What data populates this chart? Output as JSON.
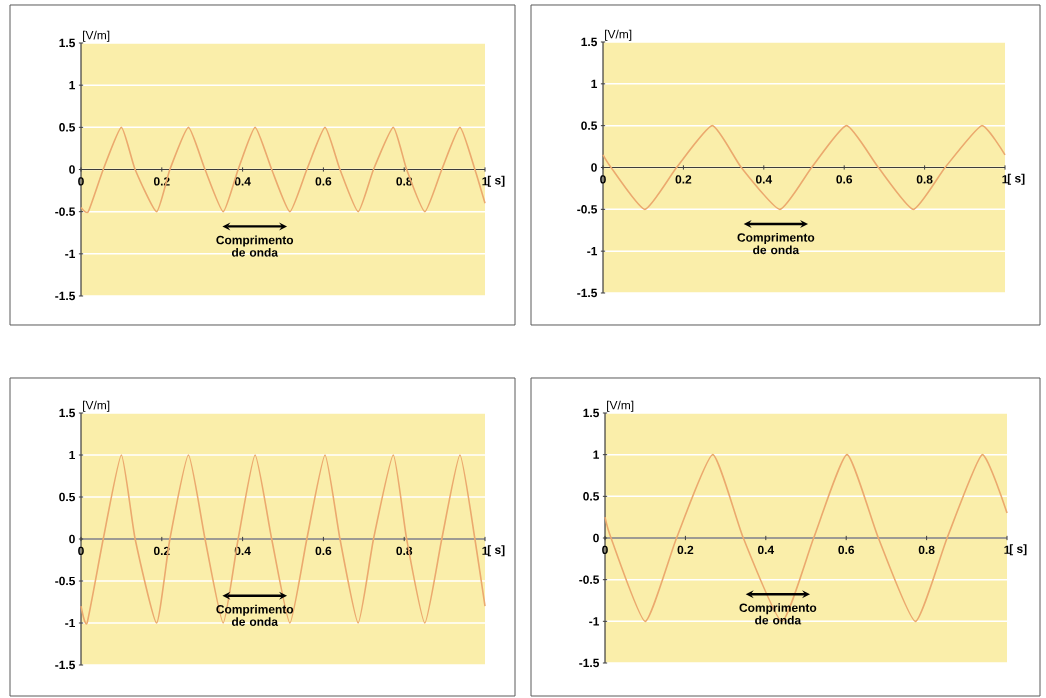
{
  "chart_data": [
    {
      "type": "line",
      "x": [
        0,
        0.018,
        0.055,
        0.1,
        0.134,
        0.187,
        0.22,
        0.266,
        0.307,
        0.352,
        0.389,
        0.431,
        0.472,
        0.517,
        0.559,
        0.604,
        0.641,
        0.686,
        0.724,
        0.773,
        0.806,
        0.851,
        0.893,
        0.938,
        0.975,
        1
      ],
      "values": [
        -0.45,
        -0.5,
        0,
        0.5,
        0,
        -0.5,
        0,
        0.5,
        0,
        -0.5,
        0,
        0.5,
        0,
        -0.5,
        0,
        0.5,
        0,
        -0.5,
        0,
        0.5,
        0,
        -0.5,
        0,
        0.5,
        0,
        -0.4
      ],
      "color": "#eba96e",
      "xlim": [
        0,
        1
      ],
      "ylim": [
        -1.5,
        1.5
      ],
      "xticks": [
        0,
        0.2,
        0.4,
        0.6,
        0.8,
        1
      ],
      "yticks": [
        -1.5,
        -1,
        -0.5,
        0,
        0.5,
        1,
        1.5
      ],
      "xlabel": "[ s]",
      "ylabel": "[V/m]",
      "annotations": [
        "Comprimento de onda"
      ],
      "grid": "y"
    },
    {
      "type": "line",
      "x": [
        0,
        0.02,
        0.104,
        0.183,
        0.272,
        0.344,
        0.44,
        0.519,
        0.606,
        0.685,
        0.772,
        0.851,
        0.942,
        1
      ],
      "values": [
        0.15,
        0,
        -0.5,
        0,
        0.5,
        0,
        -0.5,
        0,
        0.5,
        0,
        -0.5,
        0,
        0.5,
        0.15
      ],
      "color": "#eba96e",
      "xlim": [
        0,
        1
      ],
      "ylim": [
        -1.5,
        1.5
      ],
      "xticks": [
        0,
        0.2,
        0.4,
        0.6,
        0.8,
        1
      ],
      "yticks": [
        -1.5,
        -1,
        -0.5,
        0,
        0.5,
        1,
        1.5
      ],
      "xlabel": "[ s]",
      "ylabel": "[V/m]",
      "annotations": [
        "Comprimento de onda"
      ],
      "grid": "y"
    },
    {
      "type": "line",
      "x": [
        0,
        0.015,
        0.055,
        0.1,
        0.134,
        0.187,
        0.22,
        0.266,
        0.307,
        0.352,
        0.389,
        0.431,
        0.472,
        0.517,
        0.559,
        0.604,
        0.641,
        0.686,
        0.724,
        0.773,
        0.806,
        0.851,
        0.893,
        0.938,
        0.975,
        1
      ],
      "values": [
        -0.8,
        -1,
        0,
        1,
        0,
        -1,
        0,
        1,
        0,
        -1,
        0,
        1,
        0,
        -1,
        0,
        1,
        0,
        -1,
        0,
        1,
        0,
        -1,
        0,
        1,
        0,
        -0.8
      ],
      "color": "#eba96e",
      "xlim": [
        0,
        1
      ],
      "ylim": [
        -1.5,
        1.5
      ],
      "xticks": [
        0,
        0.2,
        0.4,
        0.6,
        0.8,
        1
      ],
      "yticks": [
        -1.5,
        -1,
        -0.5,
        0,
        0.5,
        1,
        1.5
      ],
      "xlabel": "[ s]",
      "ylabel": "[V/m]",
      "annotations": [
        "Comprimento de onda"
      ],
      "grid": "y"
    },
    {
      "type": "line",
      "x": [
        0,
        0.015,
        0.1,
        0.178,
        0.268,
        0.344,
        0.44,
        0.519,
        0.602,
        0.68,
        0.772,
        0.851,
        0.938,
        1
      ],
      "values": [
        0.25,
        0,
        -1,
        0,
        1,
        0,
        -1,
        0,
        1,
        0,
        -1,
        0,
        1,
        0.3
      ],
      "color": "#eba96e",
      "xlim": [
        0,
        1
      ],
      "ylim": [
        -1.5,
        1.5
      ],
      "xticks": [
        0,
        0.2,
        0.4,
        0.6,
        0.8,
        1
      ],
      "yticks": [
        -1.5,
        -1,
        -0.5,
        0,
        0.5,
        1,
        1.5
      ],
      "xlabel": "[ s]",
      "ylabel": "[V/m]",
      "annotations": [
        "Comprimento de onda"
      ],
      "grid": "y"
    }
  ]
}
